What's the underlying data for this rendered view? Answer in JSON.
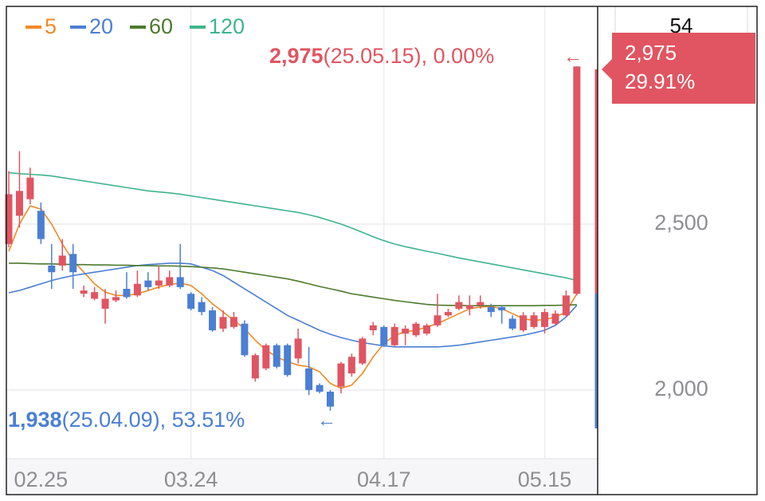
{
  "chart_data": {
    "type": "candlestick",
    "up_color": "#e05561",
    "down_color": "#4a7fd4",
    "categories": [
      null,
      null,
      null,
      "02.25",
      null,
      null,
      null,
      null,
      null,
      null,
      null,
      null,
      null,
      null,
      null,
      null,
      null,
      "03.24",
      null,
      null,
      null,
      null,
      null,
      null,
      null,
      null,
      null,
      null,
      null,
      null,
      null,
      null,
      null,
      null,
      null,
      "04.17",
      null,
      null,
      null,
      null,
      null,
      null,
      null,
      null,
      null,
      null,
      null,
      null,
      null,
      null,
      "05.15",
      null,
      null,
      null
    ],
    "open": [
      2440,
      2525,
      2575,
      2540,
      2375,
      2375,
      2410,
      2290,
      2275,
      2245,
      2270,
      2305,
      2285,
      2330,
      2315,
      2315,
      2340,
      2290,
      2265,
      2240,
      2185,
      2190,
      2200,
      2035,
      2065,
      2135,
      2135,
      2095,
      2065,
      2015,
      1995,
      2010,
      2050,
      2080,
      2180,
      2190,
      2135,
      2170,
      2165,
      2170,
      2195,
      2225,
      2245,
      2245,
      2255,
      2250,
      2250,
      2215,
      2180,
      2190,
      2190,
      2200,
      2225,
      2290
    ],
    "high": [
      2660,
      2720,
      2670,
      2565,
      2440,
      2455,
      2440,
      2315,
      2310,
      2305,
      2300,
      2355,
      2360,
      2355,
      2375,
      2360,
      2440,
      2295,
      2280,
      2250,
      2240,
      2235,
      2210,
      2110,
      2140,
      2140,
      2140,
      2185,
      2130,
      2020,
      2000,
      2085,
      2110,
      2160,
      2205,
      2195,
      2200,
      2195,
      2205,
      2200,
      2290,
      2245,
      2285,
      2285,
      2285,
      2260,
      2255,
      2225,
      2235,
      2235,
      2245,
      2240,
      2300,
      2975
    ],
    "low": [
      2430,
      2490,
      2560,
      2440,
      2305,
      2360,
      2305,
      2280,
      2270,
      2200,
      2265,
      2275,
      2280,
      2300,
      2305,
      2310,
      2305,
      2240,
      2225,
      2175,
      2175,
      2185,
      2100,
      2025,
      2060,
      2065,
      2040,
      2080,
      1985,
      1990,
      1938,
      1990,
      2040,
      2075,
      2165,
      2130,
      2130,
      2135,
      2160,
      2165,
      2190,
      2220,
      2240,
      2225,
      2245,
      2220,
      2200,
      2180,
      2175,
      2185,
      2170,
      2195,
      2220,
      2285
    ],
    "close": [
      2590,
      2600,
      2640,
      2455,
      2355,
      2405,
      2355,
      2300,
      2295,
      2275,
      2280,
      2280,
      2320,
      2310,
      2330,
      2340,
      2310,
      2245,
      2235,
      2180,
      2220,
      2220,
      2105,
      2105,
      2135,
      2070,
      2045,
      2155,
      2000,
      1995,
      1950,
      2080,
      2100,
      2155,
      2195,
      2135,
      2190,
      2185,
      2200,
      2195,
      2225,
      2235,
      2265,
      2255,
      2265,
      2235,
      2240,
      2185,
      2225,
      2225,
      2235,
      2230,
      2285,
      2975
    ],
    "series": [
      {
        "name": "5",
        "color": "#f08a24",
        "values": [
          2418,
          2500,
          2555,
          2545,
          2500,
          2440,
          2390,
          2355,
          2320,
          2295,
          2285,
          2285,
          2290,
          2300,
          2310,
          2318,
          2322,
          2315,
          2290,
          2260,
          2235,
          2210,
          2185,
          2150,
          2120,
          2100,
          2085,
          2075,
          2070,
          2055,
          2020,
          2005,
          2015,
          2050,
          2100,
          2140,
          2165,
          2175,
          2180,
          2190,
          2200,
          2215,
          2230,
          2245,
          2250,
          2252,
          2245,
          2230,
          2215,
          2210,
          2212,
          2220,
          2235,
          2290
        ]
      },
      {
        "name": "20",
        "color": "#4a7fd4",
        "values": [
          2293,
          2300,
          2310,
          2320,
          2330,
          2338,
          2345,
          2350,
          2355,
          2360,
          2365,
          2370,
          2375,
          2378,
          2380,
          2382,
          2382,
          2380,
          2370,
          2360,
          2345,
          2325,
          2305,
          2285,
          2265,
          2245,
          2225,
          2210,
          2195,
          2180,
          2168,
          2158,
          2150,
          2143,
          2138,
          2133,
          2130,
          2130,
          2130,
          2130,
          2130,
          2132,
          2135,
          2140,
          2145,
          2150,
          2155,
          2160,
          2165,
          2172,
          2180,
          2195,
          2220,
          2255
        ]
      },
      {
        "name": "60",
        "color": "#4d7a2e",
        "values": [
          2382,
          2382,
          2381,
          2380,
          2380,
          2379,
          2378,
          2378,
          2377,
          2377,
          2376,
          2376,
          2375,
          2375,
          2374,
          2374,
          2373,
          2372,
          2370,
          2368,
          2365,
          2360,
          2355,
          2350,
          2345,
          2340,
          2335,
          2328,
          2320,
          2312,
          2305,
          2298,
          2290,
          2285,
          2280,
          2275,
          2270,
          2266,
          2262,
          2258,
          2256,
          2255,
          2255,
          2254,
          2254,
          2254,
          2254,
          2254,
          2254,
          2254,
          2255,
          2255,
          2256,
          2257
        ]
      },
      {
        "name": "120",
        "color": "#3fb58a",
        "values": [
          2655,
          2652,
          2650,
          2648,
          2645,
          2640,
          2635,
          2630,
          2625,
          2620,
          2615,
          2610,
          2605,
          2600,
          2597,
          2594,
          2590,
          2585,
          2580,
          2575,
          2570,
          2565,
          2560,
          2555,
          2550,
          2545,
          2540,
          2535,
          2528,
          2520,
          2510,
          2500,
          2488,
          2475,
          2462,
          2450,
          2440,
          2432,
          2425,
          2418,
          2412,
          2405,
          2398,
          2392,
          2386,
          2380,
          2374,
          2368,
          2362,
          2356,
          2350,
          2344,
          2338,
          2330
        ]
      }
    ],
    "ylim": [
      1793,
      3156
    ],
    "yticks": [
      {
        "value": 2000,
        "label": "2,000"
      },
      {
        "value": 2500,
        "label": "2,500"
      }
    ],
    "grid": true,
    "annotations": [
      {
        "price": "2,975",
        "detail": "(25.05.15), 0.00%",
        "arrow": "←"
      },
      {
        "price": "1,938",
        "detail": "(25.04.09), 53.51%",
        "arrow": "←"
      }
    ],
    "price_tag": {
      "price": "2,975",
      "change": "29.91%"
    },
    "side_header": "54"
  }
}
